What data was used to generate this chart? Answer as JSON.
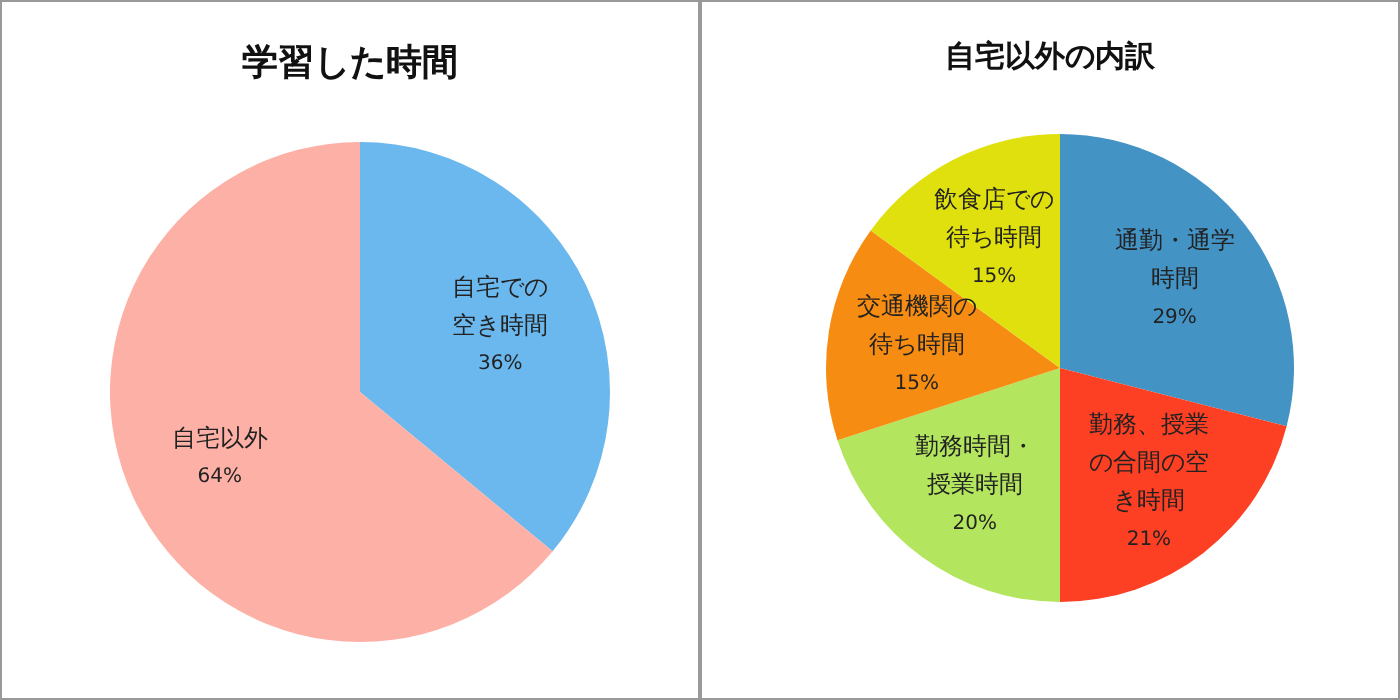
{
  "chart_data": [
    {
      "type": "pie",
      "title": "学習した時間",
      "categories": [
        "自宅での空き時間",
        "自宅以外"
      ],
      "values": [
        36,
        64
      ],
      "value_labels": [
        "36%",
        "64%"
      ],
      "colors": [
        "#6bb8ee",
        "#fdb0a6"
      ],
      "legend": false
    },
    {
      "type": "pie",
      "title": "自宅以外の内訳",
      "categories": [
        "通勤・通学時間",
        "勤務、授業の合間の空き時間",
        "勤務時間・授業時間",
        "交通機関の待ち時間",
        "飲食店での待ち時間"
      ],
      "values": [
        29,
        21,
        20,
        15,
        15
      ],
      "value_labels": [
        "29%",
        "21%",
        "20%",
        "15%",
        "15%"
      ],
      "colors": [
        "#4493c5",
        "#fd3f23",
        "#b3e55e",
        "#f78c12",
        "#e0e00e"
      ],
      "legend": false
    }
  ]
}
